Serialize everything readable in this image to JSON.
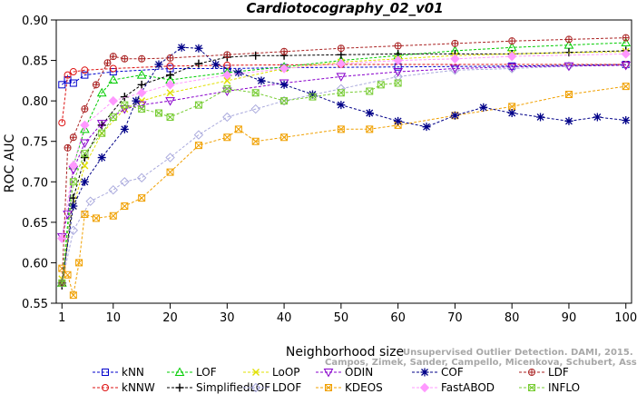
{
  "chart_data": {
    "type": "line",
    "title": "Cardiotocography_02_v01",
    "xlabel": "Neighborhood size",
    "ylabel": "ROC AUC",
    "xlim": [
      0,
      101
    ],
    "ylim": [
      0.55,
      0.9
    ],
    "xticks": [
      1,
      10,
      20,
      30,
      40,
      50,
      60,
      70,
      80,
      90,
      100
    ],
    "yticks": [
      0.55,
      0.6,
      0.65,
      0.7,
      0.75,
      0.8,
      0.85,
      0.9
    ],
    "xtick_labels": [
      "1",
      "10",
      "20",
      "30",
      "40",
      "50",
      "60",
      "70",
      "80",
      "90",
      "100"
    ],
    "ytick_labels": [
      "0.55",
      "0.60",
      "0.65",
      "0.70",
      "0.75",
      "0.80",
      "0.85",
      "0.90"
    ],
    "watermark": [
      "Unsupervised Outlier Detection. DAMI, 2015.",
      "Campos, Zimek, Sander, Campello, Micenkova, Schubert, Assent, Houle"
    ],
    "series": [
      {
        "name": "kNN",
        "color": "#0000cc",
        "marker": "square",
        "points": [
          [
            1,
            0.82
          ],
          [
            2,
            0.826
          ],
          [
            3,
            0.822
          ],
          [
            5,
            0.832
          ],
          [
            10,
            0.836
          ],
          [
            20,
            0.84
          ],
          [
            30,
            0.84
          ],
          [
            40,
            0.841
          ],
          [
            60,
            0.842
          ],
          [
            80,
            0.843
          ],
          [
            100,
            0.845
          ]
        ]
      },
      {
        "name": "kNNW",
        "color": "#dd1111",
        "marker": "circle",
        "points": [
          [
            1,
            0.773
          ],
          [
            2,
            0.832
          ],
          [
            3,
            0.836
          ],
          [
            5,
            0.838
          ],
          [
            10,
            0.84
          ],
          [
            20,
            0.843
          ],
          [
            30,
            0.844
          ],
          [
            50,
            0.845
          ],
          [
            100,
            0.845
          ]
        ]
      },
      {
        "name": "LOF",
        "color": "#00cc00",
        "marker": "triangle-up",
        "points": [
          [
            1,
            0.575
          ],
          [
            3,
            0.72
          ],
          [
            5,
            0.765
          ],
          [
            8,
            0.81
          ],
          [
            10,
            0.826
          ],
          [
            15,
            0.832
          ],
          [
            20,
            0.826
          ],
          [
            30,
            0.835
          ],
          [
            40,
            0.842
          ],
          [
            50,
            0.85
          ],
          [
            60,
            0.856
          ],
          [
            70,
            0.862
          ],
          [
            80,
            0.866
          ],
          [
            90,
            0.869
          ],
          [
            100,
            0.872
          ]
        ]
      },
      {
        "name": "SimplifiedLOF",
        "color": "#000000",
        "marker": "plus",
        "points": [
          [
            1,
            0.572
          ],
          [
            3,
            0.68
          ],
          [
            5,
            0.73
          ],
          [
            8,
            0.77
          ],
          [
            12,
            0.805
          ],
          [
            15,
            0.82
          ],
          [
            20,
            0.832
          ],
          [
            25,
            0.846
          ],
          [
            30,
            0.854
          ],
          [
            35,
            0.856
          ],
          [
            40,
            0.856
          ],
          [
            50,
            0.857
          ],
          [
            60,
            0.858
          ],
          [
            70,
            0.858
          ],
          [
            80,
            0.858
          ],
          [
            90,
            0.86
          ],
          [
            100,
            0.862
          ]
        ]
      },
      {
        "name": "LoOP",
        "color": "#e0e000",
        "marker": "x",
        "points": [
          [
            1,
            0.58
          ],
          [
            3,
            0.67
          ],
          [
            5,
            0.72
          ],
          [
            8,
            0.76
          ],
          [
            12,
            0.79
          ],
          [
            15,
            0.8
          ],
          [
            20,
            0.81
          ],
          [
            30,
            0.825
          ],
          [
            40,
            0.84
          ],
          [
            50,
            0.848
          ],
          [
            60,
            0.852
          ],
          [
            70,
            0.856
          ],
          [
            80,
            0.858
          ],
          [
            100,
            0.861
          ]
        ]
      },
      {
        "name": "LDOF",
        "color": "#aaaadd",
        "marker": "diamond",
        "points": [
          [
            1,
            0.575
          ],
          [
            3,
            0.64
          ],
          [
            6,
            0.676
          ],
          [
            10,
            0.69
          ],
          [
            12,
            0.7
          ],
          [
            15,
            0.705
          ],
          [
            20,
            0.73
          ],
          [
            25,
            0.758
          ],
          [
            30,
            0.78
          ],
          [
            35,
            0.79
          ],
          [
            40,
            0.8
          ],
          [
            50,
            0.815
          ],
          [
            60,
            0.83
          ],
          [
            70,
            0.838
          ],
          [
            80,
            0.84
          ],
          [
            90,
            0.843
          ],
          [
            100,
            0.844
          ]
        ]
      },
      {
        "name": "ODIN",
        "color": "#8800cc",
        "marker": "triangle-down",
        "points": [
          [
            1,
            0.632
          ],
          [
            2,
            0.66
          ],
          [
            3,
            0.715
          ],
          [
            5,
            0.748
          ],
          [
            8,
            0.772
          ],
          [
            12,
            0.79
          ],
          [
            15,
            0.795
          ],
          [
            20,
            0.8
          ],
          [
            30,
            0.812
          ],
          [
            40,
            0.822
          ],
          [
            50,
            0.83
          ],
          [
            60,
            0.836
          ],
          [
            70,
            0.84
          ],
          [
            80,
            0.842
          ],
          [
            90,
            0.843
          ],
          [
            100,
            0.844
          ]
        ]
      },
      {
        "name": "KDEOS",
        "color": "#f0a000",
        "marker": "square-x",
        "points": [
          [
            1,
            0.593
          ],
          [
            2,
            0.585
          ],
          [
            3,
            0.56
          ],
          [
            4,
            0.6
          ],
          [
            5,
            0.66
          ],
          [
            7,
            0.655
          ],
          [
            10,
            0.658
          ],
          [
            12,
            0.67
          ],
          [
            15,
            0.68
          ],
          [
            20,
            0.712
          ],
          [
            25,
            0.745
          ],
          [
            30,
            0.755
          ],
          [
            32,
            0.765
          ],
          [
            35,
            0.75
          ],
          [
            40,
            0.755
          ],
          [
            50,
            0.765
          ],
          [
            55,
            0.765
          ],
          [
            60,
            0.77
          ],
          [
            70,
            0.782
          ],
          [
            80,
            0.793
          ],
          [
            90,
            0.808
          ],
          [
            100,
            0.818
          ]
        ]
      },
      {
        "name": "COF",
        "color": "#000088",
        "marker": "asterisk",
        "points": [
          [
            1,
            0.575
          ],
          [
            3,
            0.67
          ],
          [
            5,
            0.7
          ],
          [
            8,
            0.73
          ],
          [
            12,
            0.765
          ],
          [
            14,
            0.8
          ],
          [
            18,
            0.845
          ],
          [
            22,
            0.866
          ],
          [
            25,
            0.865
          ],
          [
            28,
            0.845
          ],
          [
            32,
            0.835
          ],
          [
            36,
            0.825
          ],
          [
            40,
            0.82
          ],
          [
            45,
            0.808
          ],
          [
            50,
            0.795
          ],
          [
            55,
            0.785
          ],
          [
            60,
            0.775
          ],
          [
            65,
            0.768
          ],
          [
            70,
            0.782
          ],
          [
            75,
            0.792
          ],
          [
            80,
            0.785
          ],
          [
            85,
            0.78
          ],
          [
            90,
            0.775
          ],
          [
            95,
            0.78
          ],
          [
            100,
            0.776
          ]
        ]
      },
      {
        "name": "FastABOD",
        "color": "#ff99ff",
        "marker": "diamond-filled",
        "points": [
          [
            1,
            0.63
          ],
          [
            3,
            0.72
          ],
          [
            5,
            0.77
          ],
          [
            10,
            0.8
          ],
          [
            15,
            0.81
          ],
          [
            20,
            0.82
          ],
          [
            30,
            0.832
          ],
          [
            40,
            0.84
          ],
          [
            50,
            0.846
          ],
          [
            60,
            0.85
          ],
          [
            70,
            0.852
          ],
          [
            80,
            0.855
          ],
          [
            100,
            0.858
          ]
        ]
      },
      {
        "name": "LDF",
        "color": "#aa2222",
        "marker": "circle-plus",
        "points": [
          [
            1,
            0.575
          ],
          [
            2,
            0.742
          ],
          [
            3,
            0.755
          ],
          [
            5,
            0.79
          ],
          [
            7,
            0.82
          ],
          [
            9,
            0.847
          ],
          [
            10,
            0.855
          ],
          [
            12,
            0.852
          ],
          [
            15,
            0.852
          ],
          [
            20,
            0.853
          ],
          [
            30,
            0.857
          ],
          [
            40,
            0.861
          ],
          [
            50,
            0.865
          ],
          [
            60,
            0.868
          ],
          [
            70,
            0.871
          ],
          [
            80,
            0.874
          ],
          [
            90,
            0.876
          ],
          [
            100,
            0.878
          ]
        ]
      },
      {
        "name": "INFLO",
        "color": "#77cc33",
        "marker": "square-x",
        "points": [
          [
            1,
            0.575
          ],
          [
            3,
            0.7
          ],
          [
            5,
            0.735
          ],
          [
            8,
            0.76
          ],
          [
            10,
            0.78
          ],
          [
            12,
            0.795
          ],
          [
            15,
            0.79
          ],
          [
            18,
            0.785
          ],
          [
            20,
            0.78
          ],
          [
            25,
            0.795
          ],
          [
            30,
            0.815
          ],
          [
            35,
            0.81
          ],
          [
            40,
            0.8
          ],
          [
            45,
            0.805
          ],
          [
            50,
            0.81
          ],
          [
            55,
            0.812
          ],
          [
            57,
            0.82
          ],
          [
            60,
            0.822
          ]
        ]
      }
    ]
  }
}
